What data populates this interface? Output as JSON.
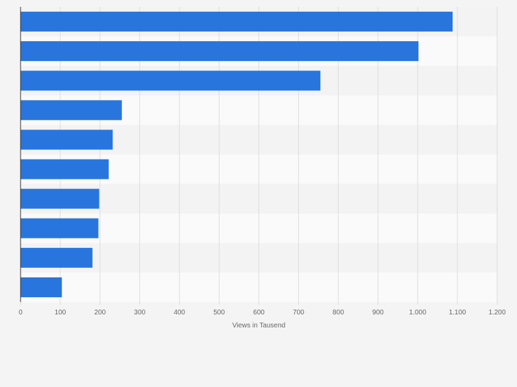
{
  "chart_data": {
    "type": "bar",
    "orientation": "horizontal",
    "categories": [
      "",
      "",
      "",
      "",
      "",
      "",
      "",
      "",
      "",
      ""
    ],
    "values": [
      1088,
      1002,
      755,
      255,
      232,
      222,
      198,
      196,
      181,
      104
    ],
    "xlabel": "Views in Tausend",
    "ylabel": "",
    "xlim": [
      0,
      1200
    ],
    "ticks": [
      0,
      100,
      200,
      300,
      400,
      500,
      600,
      700,
      800,
      900,
      1000,
      1100,
      1200
    ],
    "tick_labels": [
      "0",
      "100",
      "200",
      "300",
      "400",
      "500",
      "600",
      "700",
      "800",
      "900",
      "1.000",
      "1.100",
      "1.200"
    ],
    "grid": true,
    "legend": "none"
  },
  "colors": {
    "bar": "#2876dd",
    "page_background": "#f4f4f4",
    "band_light": "#fafafa",
    "band_dark": "#f3f3f3",
    "grid": "#dddddd",
    "axis": "#333333",
    "text": "#666666"
  }
}
